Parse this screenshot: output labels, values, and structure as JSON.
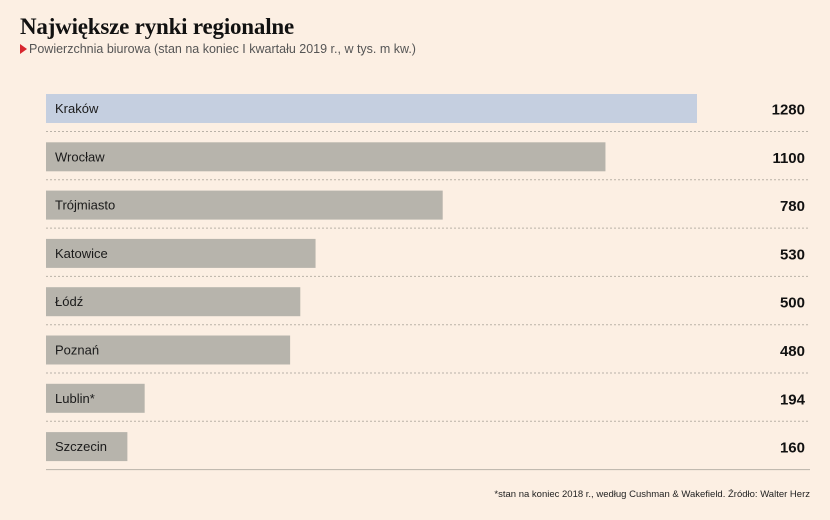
{
  "header": {
    "title": "Największe rynki regionalne",
    "subtitle": "Powierzchnia biurowa (stan na koniec I kwartału 2019 r., w tys. m kw.)"
  },
  "chart_data": {
    "type": "bar",
    "orientation": "horizontal",
    "categories": [
      "Kraków",
      "Wrocław",
      "Trójmiasto",
      "Katowice",
      "Łódź",
      "Poznań",
      "Lublin*",
      "Szczecin"
    ],
    "values": [
      1280,
      1100,
      780,
      530,
      500,
      480,
      194,
      160
    ],
    "title": "Największe rynki regionalne",
    "subtitle": "Powierzchnia biurowa (stan na koniec I kwartału 2019 r., w tys. m kw.)",
    "xlim": [
      0,
      1280
    ],
    "highlight_index": 0,
    "colors": {
      "highlight": "#c5cfe0",
      "bar": "#b7b4ac",
      "separator": "#b9b2a8"
    }
  },
  "footnote": "*stan na koniec 2018 r., według Cushman & Wakefield. Źródło: Walter Herz"
}
